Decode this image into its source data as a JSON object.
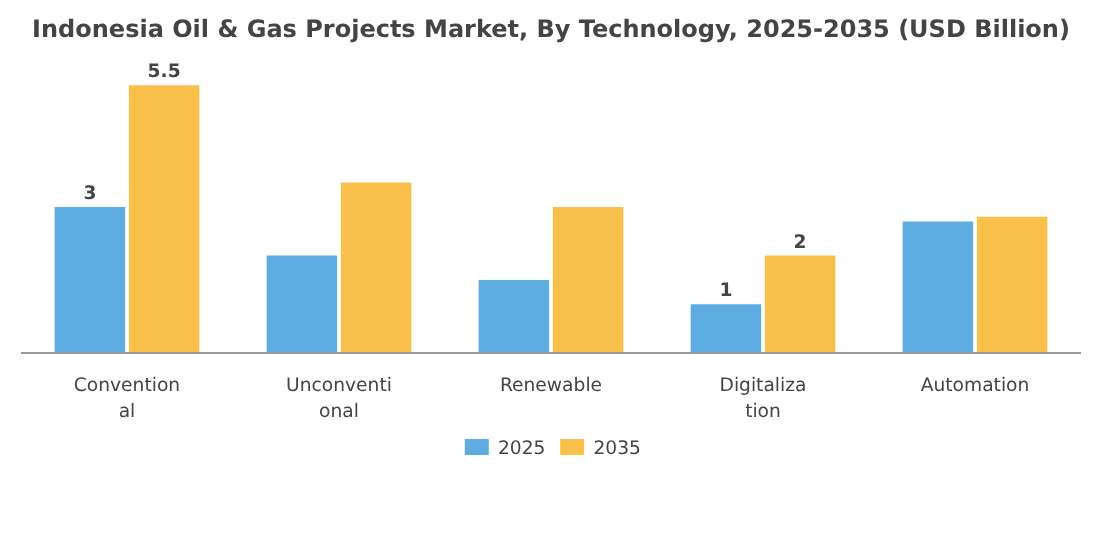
{
  "chart_data": {
    "type": "bar",
    "title": "Indonesia Oil & Gas Projects Market, By Technology, 2025-2035 (USD Billion)",
    "categories": [
      "Convention\nal",
      "Unconventi\nonal",
      "Renewable",
      "Digitaliza\ntion",
      "Automation"
    ],
    "series": [
      {
        "name": "2025",
        "color": "#5dade2",
        "values": [
          3,
          2,
          1.5,
          1,
          2.7
        ],
        "value_labels": [
          "3",
          null,
          null,
          "1",
          null
        ]
      },
      {
        "name": "2035",
        "color": "#f9c04c",
        "values": [
          5.5,
          3.5,
          3,
          2,
          2.8
        ],
        "value_labels": [
          "5.5",
          null,
          null,
          "2",
          null
        ]
      }
    ],
    "legend": "bottom"
  }
}
